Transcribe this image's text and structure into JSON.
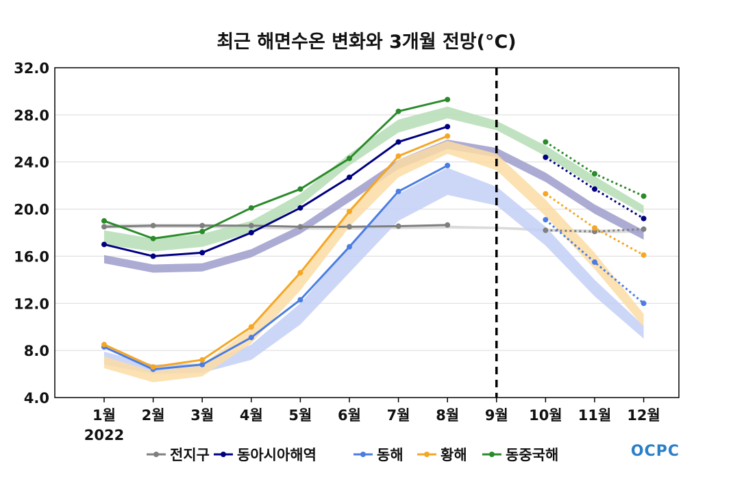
{
  "chart_data": {
    "type": "line",
    "title": "최근 해면수온 변화와 3개월 전망(°C)",
    "year_label": "2022",
    "categories": [
      "1월",
      "2월",
      "3월",
      "4월",
      "5월",
      "6월",
      "7월",
      "8월",
      "9월",
      "10월",
      "11월",
      "12월"
    ],
    "ylim": [
      4.0,
      32.0
    ],
    "yticks": [
      "4.0",
      "8.0",
      "12.0",
      "16.0",
      "20.0",
      "24.0",
      "28.0",
      "32.0"
    ],
    "divider_at": "9월",
    "grid": true,
    "legend_position": "bottom",
    "series": [
      {
        "name": "전지구",
        "color": "#7f7f7f",
        "observed": [
          18.5,
          18.6,
          18.6,
          18.6,
          18.5,
          18.5,
          18.55,
          18.65,
          null,
          null,
          null,
          null
        ],
        "forecast": [
          null,
          null,
          null,
          null,
          null,
          null,
          null,
          null,
          null,
          18.2,
          18.1,
          18.3
        ],
        "normal_low": [
          18.35,
          18.4,
          18.4,
          18.3,
          18.25,
          18.25,
          18.3,
          18.35,
          18.3,
          18.1,
          17.95,
          18.0
        ],
        "normal_high": [
          18.7,
          18.75,
          18.75,
          18.65,
          18.55,
          18.55,
          18.6,
          18.6,
          18.5,
          18.35,
          18.25,
          18.3
        ],
        "band_color": "#d3d3d3"
      },
      {
        "name": "동아시아해역",
        "color": "#000080",
        "observed": [
          17.0,
          16.0,
          16.3,
          18.0,
          20.1,
          22.7,
          25.7,
          27.0,
          null,
          null,
          null,
          null
        ],
        "forecast": [
          null,
          null,
          null,
          null,
          null,
          null,
          null,
          null,
          null,
          24.4,
          21.7,
          19.2
        ],
        "normal_low": [
          15.4,
          14.6,
          14.7,
          15.9,
          17.9,
          20.6,
          23.4,
          25.1,
          24.4,
          22.3,
          19.6,
          17.4
        ],
        "normal_high": [
          16.1,
          15.3,
          15.4,
          16.6,
          18.6,
          21.4,
          24.2,
          25.9,
          25.2,
          23.1,
          20.4,
          18.2
        ],
        "band_color": "#9e9ccb"
      },
      {
        "name": "동해",
        "color": "#4a7de2",
        "observed": [
          8.3,
          6.4,
          6.8,
          9.1,
          12.3,
          16.8,
          21.5,
          23.7,
          null,
          null,
          null,
          null
        ],
        "forecast": [
          null,
          null,
          null,
          null,
          null,
          null,
          null,
          null,
          null,
          19.1,
          15.5,
          12.0
        ],
        "normal_low": [
          6.8,
          6.0,
          6.1,
          7.2,
          10.2,
          14.6,
          19.0,
          21.2,
          20.3,
          16.9,
          12.6,
          9.0
        ],
        "normal_high": [
          7.9,
          6.8,
          6.9,
          8.5,
          12.0,
          16.9,
          21.3,
          23.5,
          21.9,
          18.5,
          14.0,
          10.1
        ],
        "band_color": "#c3d0f7"
      },
      {
        "name": "황해",
        "color": "#f5a623",
        "observed": [
          8.5,
          6.6,
          7.2,
          10.0,
          14.6,
          19.8,
          24.5,
          26.2,
          null,
          null,
          null,
          null
        ],
        "forecast": [
          null,
          null,
          null,
          null,
          null,
          null,
          null,
          null,
          null,
          21.3,
          18.4,
          16.1
        ],
        "normal_low": [
          6.5,
          5.3,
          5.8,
          8.6,
          13.1,
          18.5,
          22.7,
          24.7,
          23.3,
          19.4,
          14.9,
          10.0
        ],
        "normal_high": [
          7.5,
          6.2,
          6.8,
          9.9,
          14.7,
          20.0,
          24.2,
          25.8,
          24.7,
          20.8,
          16.3,
          11.1
        ],
        "band_color": "#fbdca5"
      },
      {
        "name": "동중국해",
        "color": "#2a8a2a",
        "observed": [
          19.0,
          17.5,
          18.1,
          20.1,
          21.7,
          24.3,
          28.3,
          29.3,
          null,
          null,
          null,
          null
        ],
        "forecast": [
          null,
          null,
          null,
          null,
          null,
          null,
          null,
          null,
          null,
          25.7,
          23.0,
          21.1
        ],
        "normal_low": [
          17.0,
          16.4,
          16.8,
          18.0,
          20.3,
          23.7,
          26.5,
          27.7,
          26.7,
          24.5,
          21.9,
          19.6
        ],
        "normal_high": [
          18.2,
          17.5,
          17.9,
          19.0,
          21.3,
          24.7,
          27.6,
          28.7,
          27.5,
          25.4,
          22.8,
          20.3
        ],
        "band_color": "#b5ddb5"
      }
    ]
  },
  "logo_text": "OCPC"
}
